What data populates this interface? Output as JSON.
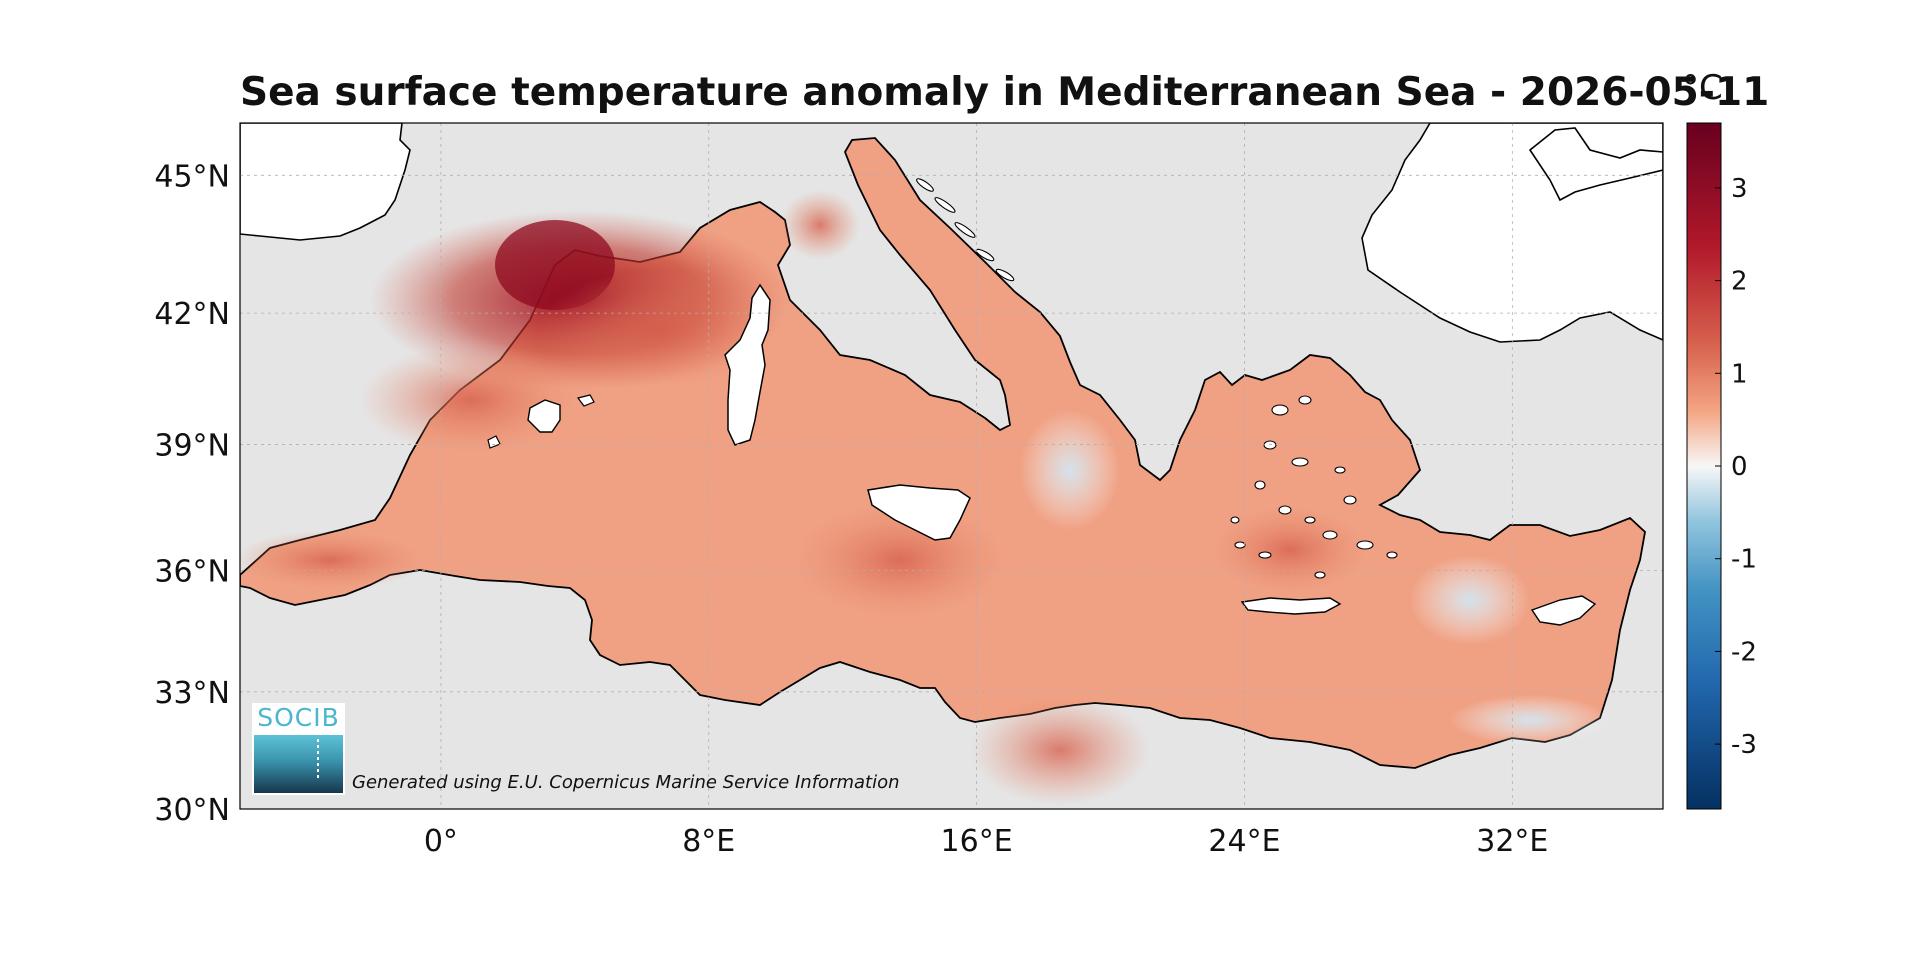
{
  "map": {
    "title": "Sea surface temperature anomaly in Mediterranean Sea - 2026-05-11",
    "colorbar_unit": "°C",
    "credit": "Generated using E.U. Copernicus Marine Service Information",
    "logo_text": "SOCIB",
    "lat_labels": [
      "45°N",
      "42°N",
      "39°N",
      "36°N",
      "33°N",
      "30°N"
    ],
    "lat_values": [
      45,
      42,
      39,
      36,
      33,
      30
    ],
    "lon_labels": [
      "0°",
      "8°E",
      "16°E",
      "24°E",
      "32°E"
    ],
    "lon_values": [
      0,
      8,
      16,
      24,
      32
    ],
    "colorbar_ticks": [
      "3",
      "2",
      "1",
      "0",
      "-1",
      "-2",
      "-3"
    ],
    "colorbar_values": [
      3,
      2,
      1,
      0,
      -1,
      -2,
      -3
    ],
    "colorbar_range": [
      -3.7,
      3.7
    ],
    "colors": {
      "land": "#ffffff",
      "no_data": "#e5e5e5",
      "coast": "#000000",
      "warm_max": "#67001f",
      "neutral": "#f7f7f7",
      "cold_max": "#053061"
    }
  }
}
